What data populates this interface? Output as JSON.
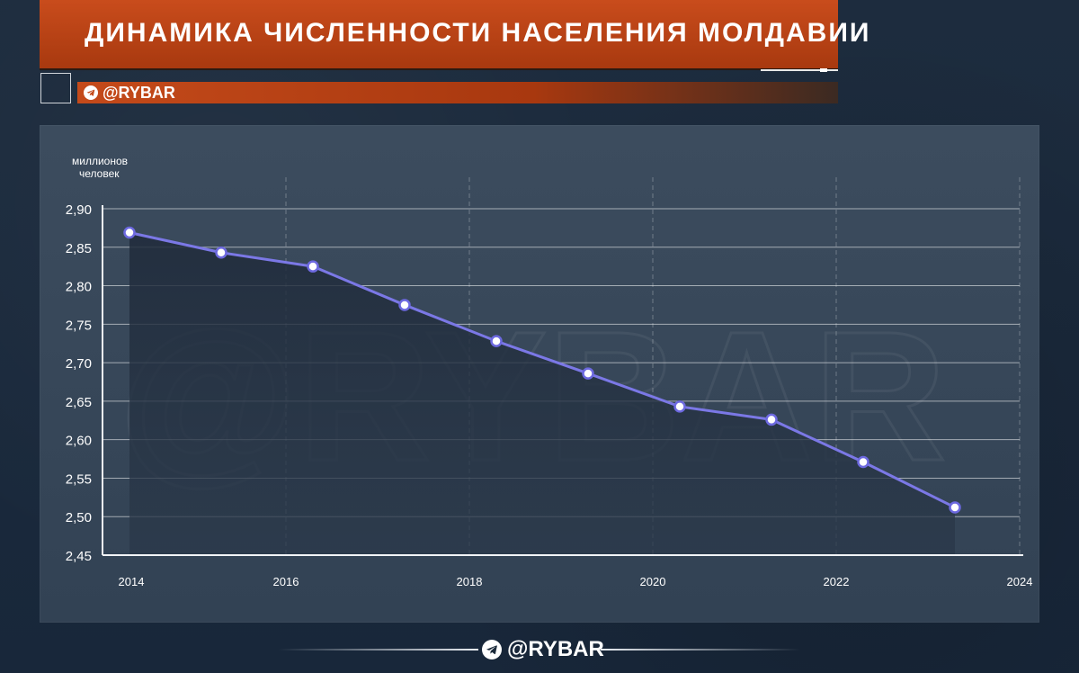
{
  "header": {
    "title": "ДИНАМИКА ЧИСЛЕННОСТИ НАСЕЛЕНИЯ МОЛДАВИИ",
    "brand_handle": "@RYBAR",
    "brand_icon": "telegram-icon"
  },
  "footer": {
    "brand_handle": "@RYBAR",
    "brand_icon": "telegram-icon"
  },
  "watermark": "@RYBAR",
  "colors": {
    "accent": "#c44a1a",
    "line": "#7b78e6",
    "panel": "#364658",
    "background": "#1b2a3b"
  },
  "chart_data": {
    "type": "area",
    "ylabel_line1": "миллионов",
    "ylabel_line2": "человек",
    "ylim": [
      2.45,
      2.9
    ],
    "yticks": [
      "2,90",
      "2,85",
      "2,80",
      "2,75",
      "2,70",
      "2,65",
      "2,60",
      "2,55",
      "2,50",
      "2,45"
    ],
    "ytick_values": [
      2.9,
      2.85,
      2.8,
      2.75,
      2.7,
      2.65,
      2.6,
      2.55,
      2.5,
      2.45
    ],
    "xlim": [
      2014,
      2024
    ],
    "xticks": [
      "2014",
      "2016",
      "2018",
      "2020",
      "2022",
      "2024"
    ],
    "xtick_values": [
      2014,
      2016,
      2018,
      2020,
      2022,
      2024
    ],
    "grid": true,
    "x": [
      2014,
      2015,
      2016,
      2017,
      2018,
      2019,
      2020,
      2021,
      2022,
      2023
    ],
    "values": [
      2.869,
      2.843,
      2.825,
      2.775,
      2.728,
      2.686,
      2.643,
      2.626,
      2.571,
      2.512
    ]
  }
}
